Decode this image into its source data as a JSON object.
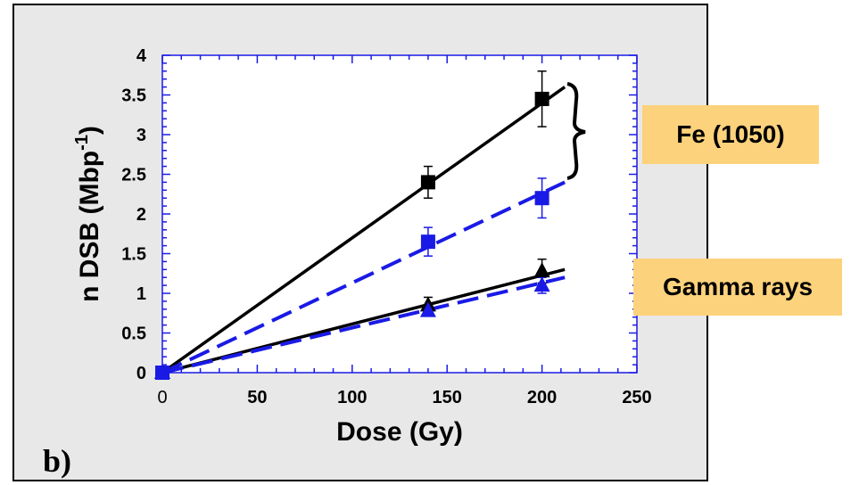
{
  "panel_letter": "b)",
  "annotations": {
    "fe": "Fe (1050)",
    "gamma": "Gamma rays"
  },
  "colors": {
    "black_series": "#000000",
    "blue_series": "#1a1ae6",
    "label_bg": "#fdd27c",
    "panel_bg": "#e8e8e8"
  },
  "chart_data": {
    "type": "scatter",
    "xlabel": "Dose (Gy)",
    "ylabel": "n DSB (Mbp",
    "ylabel_sup": "-1",
    "ylabel_close": ")",
    "xlim": [
      0,
      250
    ],
    "ylim": [
      0,
      4
    ],
    "xticks": [
      0,
      50,
      100,
      150,
      200,
      250
    ],
    "yticks": [
      0,
      0.5,
      1,
      1.5,
      2,
      2.5,
      3,
      3.5,
      4
    ],
    "grid": false,
    "series": [
      {
        "marker": "square",
        "color": "#000000",
        "line": "solid",
        "x": [
          0,
          140,
          200
        ],
        "y": [
          0,
          2.4,
          3.45
        ],
        "err": [
          0,
          0.2,
          0.35
        ],
        "fit": [
          [
            0,
            0
          ],
          [
            212,
            3.6
          ]
        ]
      },
      {
        "marker": "square",
        "color": "#1a1ae6",
        "line": "dashed",
        "x": [
          0,
          140,
          200
        ],
        "y": [
          0,
          1.65,
          2.2
        ],
        "err": [
          0,
          0.18,
          0.25
        ],
        "fit": [
          [
            0,
            0
          ],
          [
            212,
            2.4
          ]
        ]
      },
      {
        "marker": "triangle",
        "color": "#000000",
        "line": "solid",
        "x": [
          0,
          140,
          200
        ],
        "y": [
          0,
          0.85,
          1.28
        ],
        "err": [
          0,
          0.1,
          0.15
        ],
        "fit": [
          [
            0,
            0
          ],
          [
            212,
            1.3
          ]
        ]
      },
      {
        "marker": "triangle",
        "color": "#1a1ae6",
        "line": "dashed",
        "x": [
          0,
          140,
          200
        ],
        "y": [
          0,
          0.78,
          1.1
        ],
        "err": [
          0,
          0.06,
          0.1
        ],
        "fit": [
          [
            0,
            0
          ],
          [
            212,
            1.2
          ]
        ]
      }
    ]
  }
}
